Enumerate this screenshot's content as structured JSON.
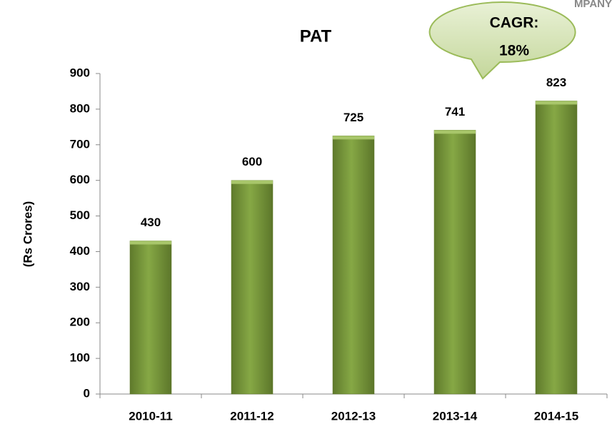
{
  "logo_text": "MPANY",
  "chart_data": {
    "type": "bar",
    "title": "PAT",
    "y_label": "(Rs Crores)",
    "annotation": [
      "CAGR:",
      "18%"
    ],
    "categories": [
      "2010-11",
      "2011-12",
      "2012-13",
      "2013-14",
      "2014-15"
    ],
    "values": [
      430,
      600,
      725,
      741,
      823
    ],
    "color": "#77933c",
    "ylim": [
      0,
      900
    ],
    "yticks": [
      0,
      100,
      200,
      300,
      400,
      500,
      600,
      700,
      800,
      900
    ],
    "grid": false
  }
}
